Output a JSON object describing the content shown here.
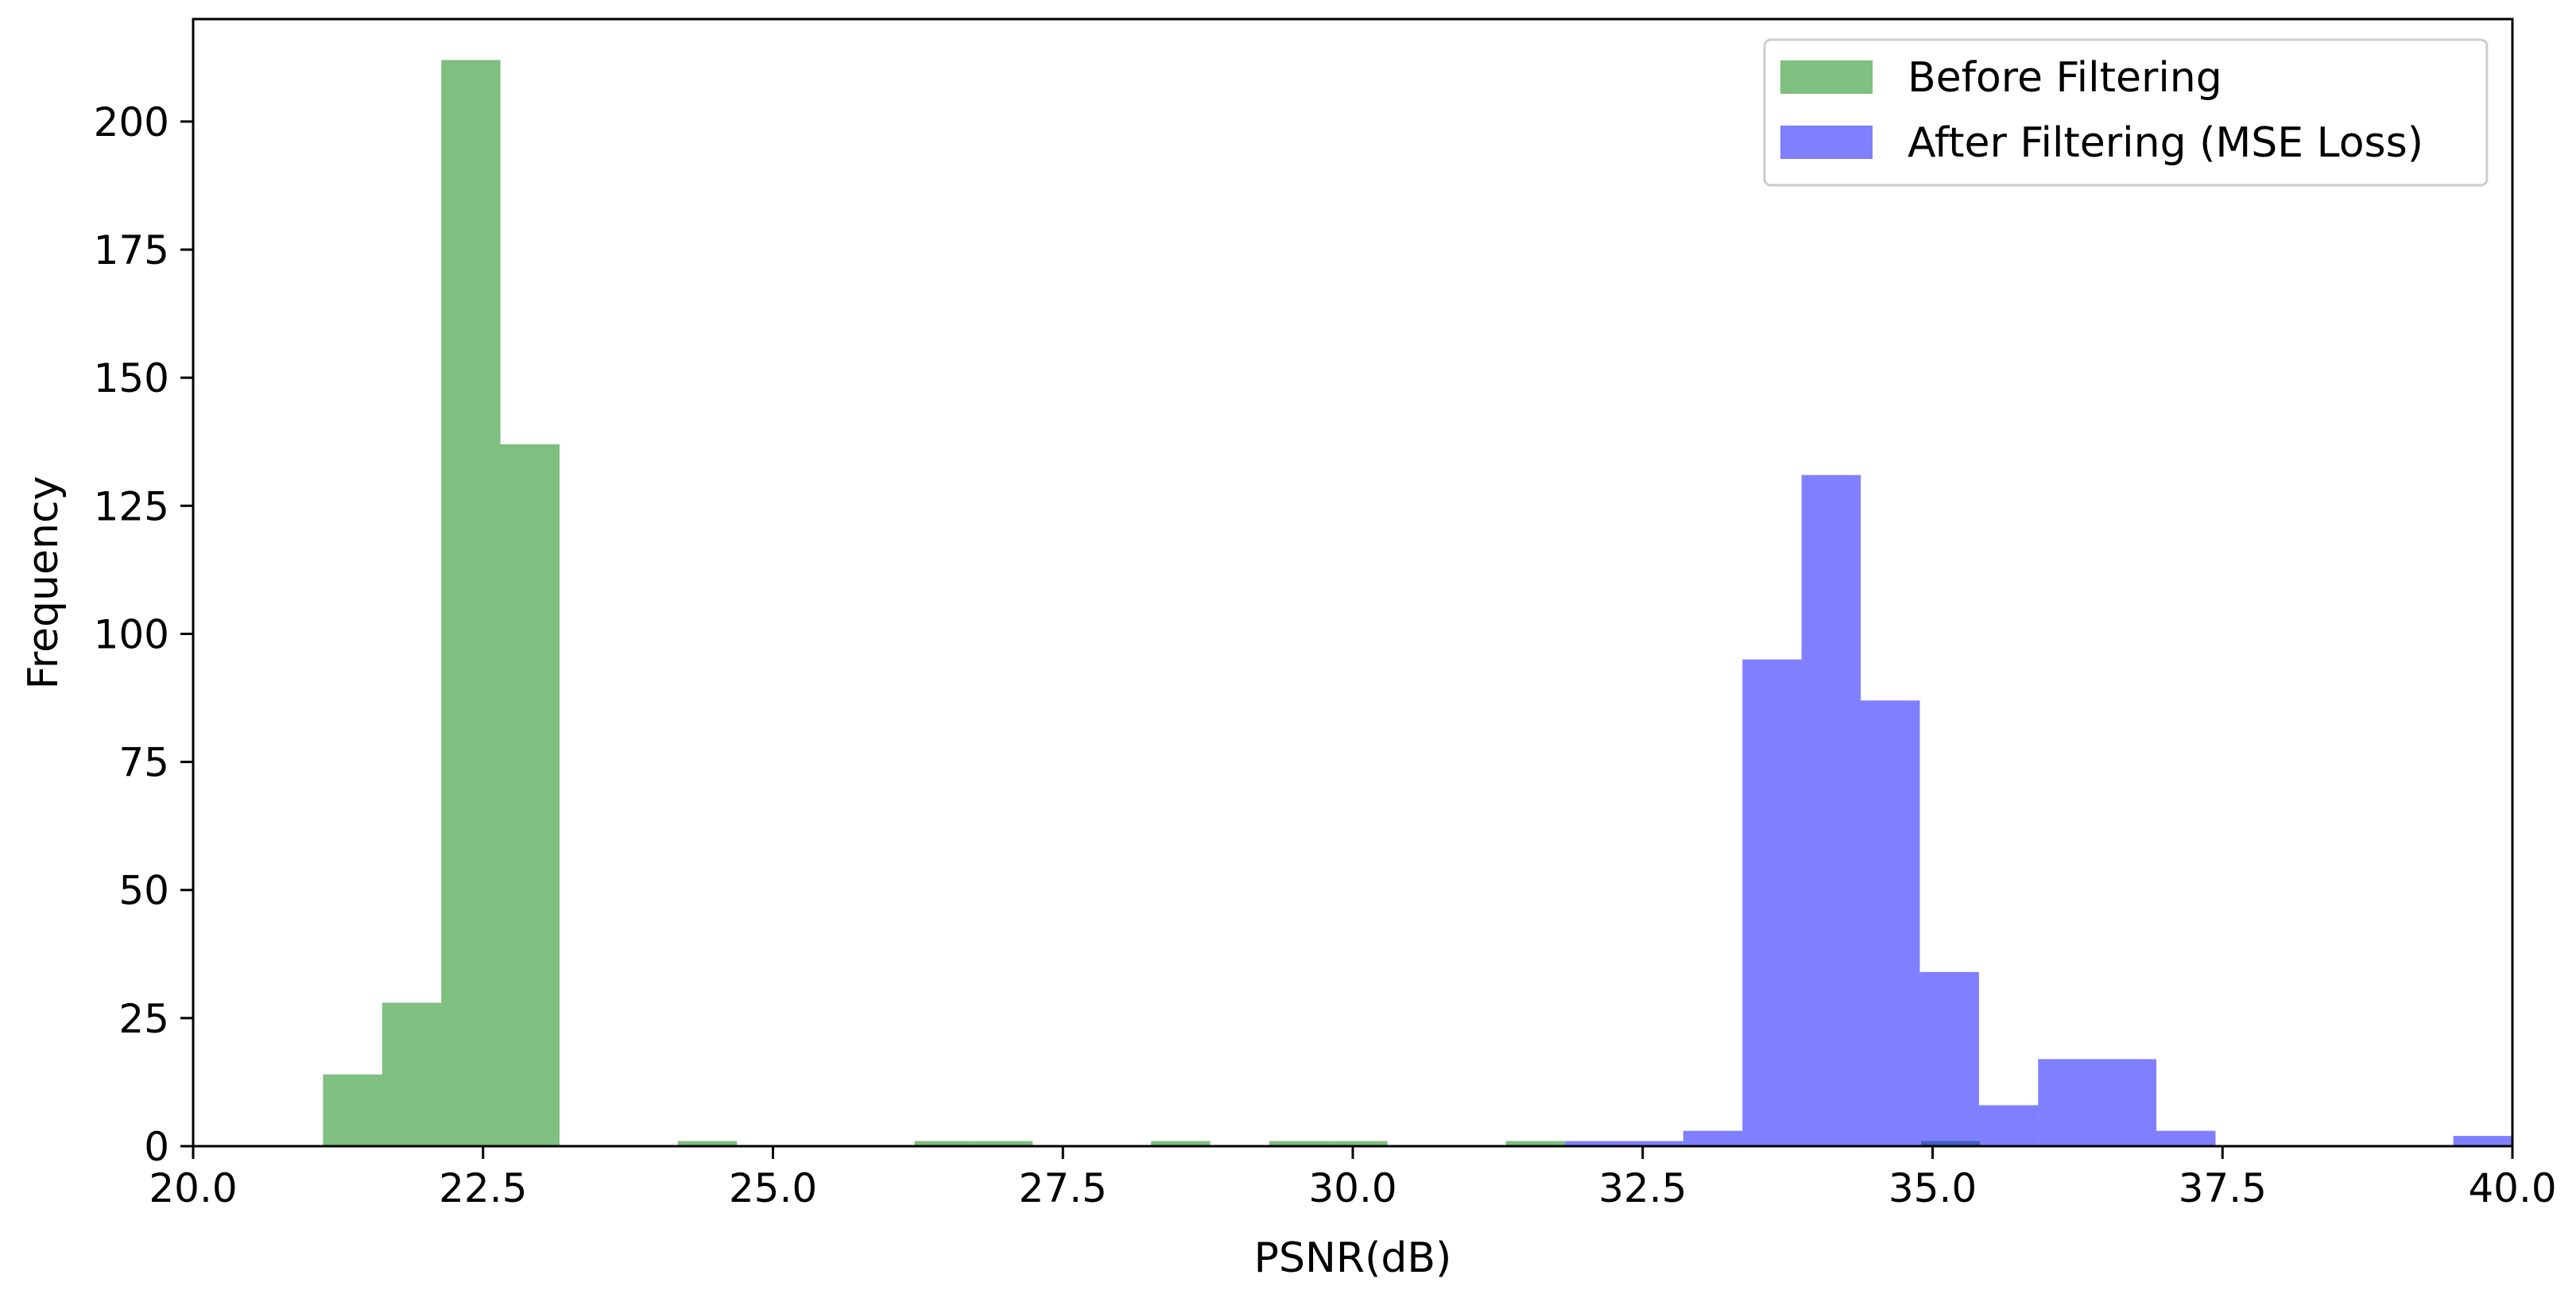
{
  "chart_data": {
    "type": "histogram",
    "xlabel": "PSNR(dB)",
    "ylabel": "Frequency",
    "xlim": [
      20.0,
      40.0
    ],
    "ylim": [
      0,
      220
    ],
    "x_ticks": [
      "20.0",
      "22.5",
      "25.0",
      "27.5",
      "30.0",
      "32.5",
      "35.0",
      "37.5",
      "40.0"
    ],
    "y_ticks": [
      "0",
      "25",
      "50",
      "75",
      "100",
      "125",
      "150",
      "175",
      "200"
    ],
    "legend_position": "top-right",
    "grid": false,
    "series": [
      {
        "name": "Before Filtering",
        "color": "#008000",
        "opacity": 0.5,
        "bins": [
          {
            "x0": 21.12,
            "x1": 21.63,
            "count": 14
          },
          {
            "x0": 21.63,
            "x1": 22.14,
            "count": 28
          },
          {
            "x0": 22.14,
            "x1": 22.65,
            "count": 212
          },
          {
            "x0": 22.65,
            "x1": 23.16,
            "count": 137
          },
          {
            "x0": 24.18,
            "x1": 24.69,
            "count": 1
          },
          {
            "x0": 26.22,
            "x1": 26.73,
            "count": 1
          },
          {
            "x0": 26.73,
            "x1": 27.24,
            "count": 1
          },
          {
            "x0": 28.26,
            "x1": 28.77,
            "count": 1
          },
          {
            "x0": 29.28,
            "x1": 29.79,
            "count": 1
          },
          {
            "x0": 29.79,
            "x1": 30.3,
            "count": 1
          },
          {
            "x0": 31.32,
            "x1": 31.83,
            "count": 1
          },
          {
            "x0": 34.9,
            "x1": 35.41,
            "count": 1
          }
        ]
      },
      {
        "name": "After Filtering (MSE Loss)",
        "color": "#0000ff",
        "opacity": 0.5,
        "bins": [
          {
            "x0": 31.83,
            "x1": 32.34,
            "count": 1
          },
          {
            "x0": 32.34,
            "x1": 32.85,
            "count": 1
          },
          {
            "x0": 32.85,
            "x1": 33.36,
            "count": 3
          },
          {
            "x0": 33.36,
            "x1": 33.87,
            "count": 95
          },
          {
            "x0": 33.87,
            "x1": 34.38,
            "count": 131
          },
          {
            "x0": 34.38,
            "x1": 34.89,
            "count": 87
          },
          {
            "x0": 34.89,
            "x1": 35.4,
            "count": 34
          },
          {
            "x0": 35.4,
            "x1": 35.91,
            "count": 8
          },
          {
            "x0": 35.91,
            "x1": 36.42,
            "count": 17
          },
          {
            "x0": 36.42,
            "x1": 36.93,
            "count": 17
          },
          {
            "x0": 36.93,
            "x1": 37.44,
            "count": 3
          },
          {
            "x0": 39.49,
            "x1": 40.0,
            "count": 2
          }
        ]
      }
    ]
  }
}
